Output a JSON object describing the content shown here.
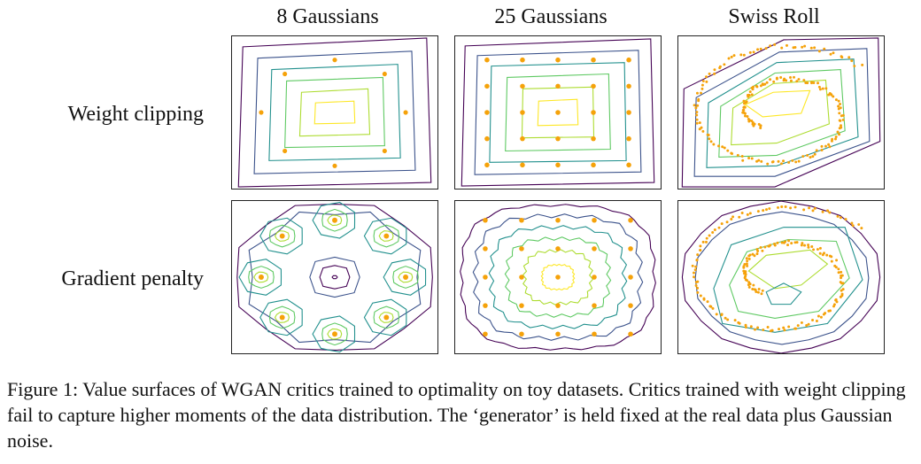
{
  "figure": {
    "columns": [
      "8 Gaussians",
      "25 Gaussians",
      "Swiss Roll"
    ],
    "rows": [
      "Weight clipping",
      "Gradient penalty"
    ],
    "caption": "Figure 1:  Value surfaces of WGAN critics trained to optimality on toy datasets. Critics trained with weight clipping fail to capture higher moments of the data distribution. The ‘generator’ is held fixed at the real data plus Gaussian noise.",
    "colors": {
      "contours": [
        "#440154",
        "#3b528b",
        "#21908d",
        "#5ec962",
        "#addc30",
        "#fde725"
      ],
      "points": "#f5a20a"
    }
  }
}
